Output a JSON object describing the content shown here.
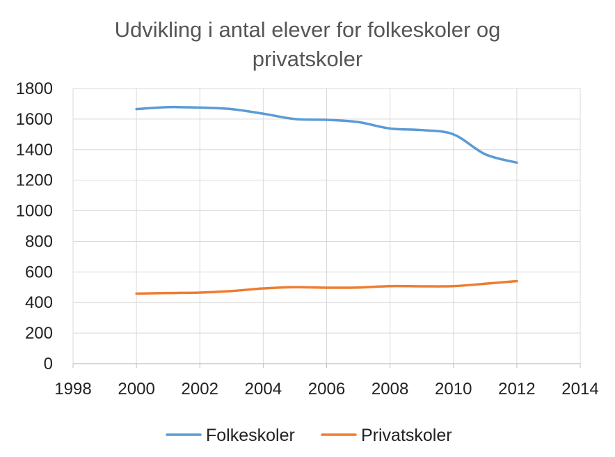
{
  "chart_data": {
    "type": "line",
    "title": "Udvikling i antal elever for folkeskoler og privatskoler",
    "title_lines": [
      "Udvikling i antal elever for folkeskoler og",
      "privatskoler"
    ],
    "xlabel": "",
    "ylabel": "",
    "xlim": [
      1998,
      2014
    ],
    "ylim": [
      0,
      1800
    ],
    "x_ticks": [
      1998,
      2000,
      2002,
      2004,
      2006,
      2008,
      2010,
      2012,
      2014
    ],
    "y_ticks": [
      0,
      200,
      400,
      600,
      800,
      1000,
      1200,
      1400,
      1600,
      1800
    ],
    "grid": true,
    "legend_position": "bottom",
    "x": [
      2000,
      2001,
      2002,
      2003,
      2004,
      2005,
      2006,
      2007,
      2008,
      2009,
      2010,
      2011,
      2012
    ],
    "series": [
      {
        "name": "Folkeskoler",
        "color": "#5B9BD5",
        "values": [
          1665,
          1678,
          1675,
          1665,
          1635,
          1600,
          1595,
          1580,
          1538,
          1528,
          1500,
          1370,
          1315
        ]
      },
      {
        "name": "Privatskoler",
        "color": "#ED7D31",
        "values": [
          458,
          462,
          465,
          475,
          492,
          500,
          497,
          498,
          507,
          506,
          507,
          523,
          540
        ]
      }
    ]
  }
}
